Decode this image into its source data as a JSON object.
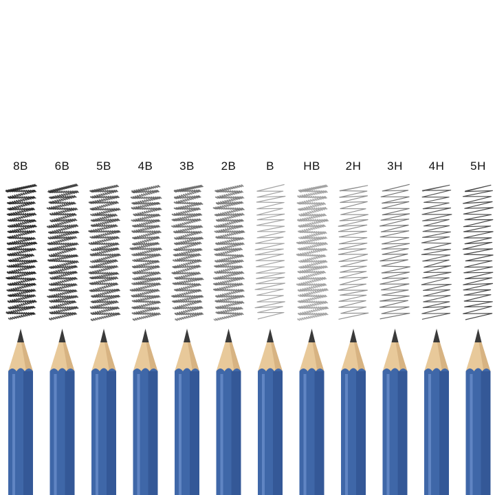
{
  "grades": [
    {
      "label": "8B",
      "darkness": 0.95
    },
    {
      "label": "6B",
      "darkness": 0.85
    },
    {
      "label": "5B",
      "darkness": 0.78
    },
    {
      "label": "4B",
      "darkness": 0.7
    },
    {
      "label": "3B",
      "darkness": 0.66
    },
    {
      "label": "2B",
      "darkness": 0.6
    },
    {
      "label": "B",
      "darkness": 0.4
    },
    {
      "label": "HB",
      "darkness": 0.42
    },
    {
      "label": "2H",
      "darkness": 0.48
    },
    {
      "label": "3H",
      "darkness": 0.6
    },
    {
      "label": "4H",
      "darkness": 0.72
    },
    {
      "label": "5H",
      "darkness": 0.8
    }
  ],
  "colors": {
    "pencil_body": "#3f67a8",
    "pencil_body_dark": "#2d4f8c",
    "pencil_body_light": "#6f93cf",
    "wood": "#e8c99a",
    "wood_shade": "#c9a170",
    "graphite": "#3a3a3a",
    "background": "#ffffff"
  }
}
